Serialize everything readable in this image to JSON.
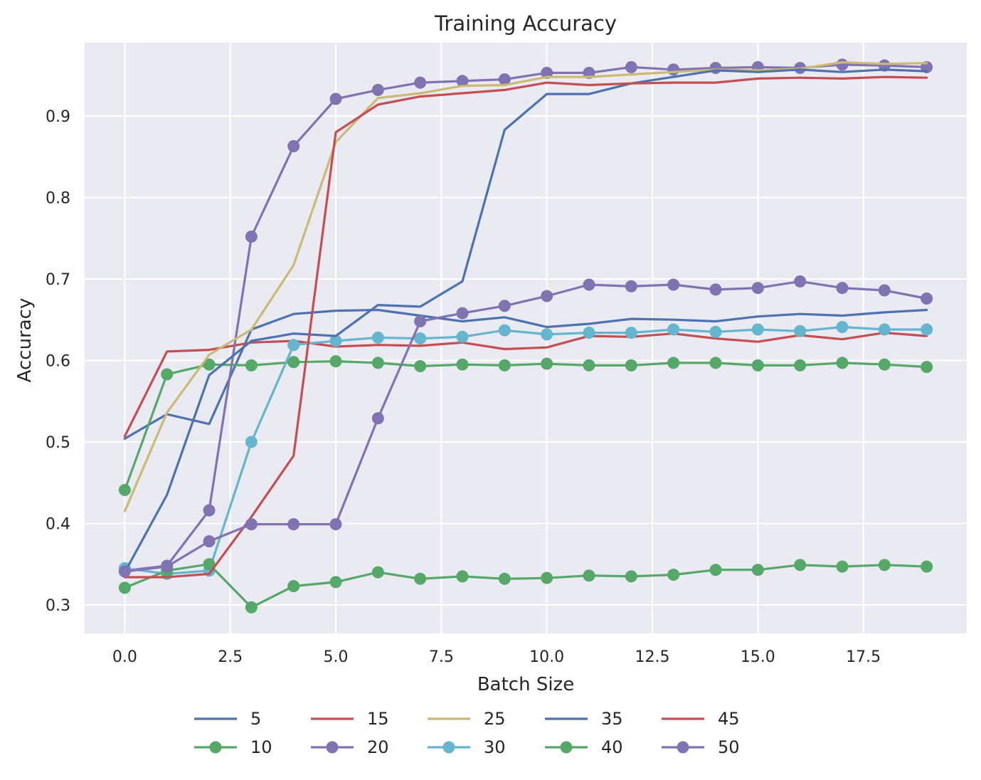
{
  "chart_data": {
    "type": "line",
    "title": "Training Accuracy",
    "xlabel": "Batch Size",
    "ylabel": "Accuracy",
    "xlim": [
      -0.95,
      19.95
    ],
    "ylim": [
      0.265,
      0.99
    ],
    "xticks": [
      0.0,
      2.5,
      5.0,
      7.5,
      10.0,
      12.5,
      15.0,
      17.5
    ],
    "xtick_labels": [
      "0.0",
      "2.5",
      "5.0",
      "7.5",
      "10.0",
      "12.5",
      "15.0",
      "17.5"
    ],
    "yticks": [
      0.3,
      0.4,
      0.5,
      0.6,
      0.7,
      0.8,
      0.9
    ],
    "ytick_labels": [
      "0.3",
      "0.4",
      "0.5",
      "0.6",
      "0.7",
      "0.8",
      "0.9"
    ],
    "grid": true,
    "legend_position": "bottom-center",
    "legend_columns": 6,
    "x": [
      0,
      1,
      2,
      3,
      4,
      5,
      6,
      7,
      8,
      9,
      10,
      11,
      12,
      13,
      14,
      15,
      16,
      17,
      18,
      19
    ],
    "series": [
      {
        "name": "5",
        "color": "#4C72B0",
        "marker": false,
        "values": [
          0.504,
          0.534,
          0.522,
          0.638,
          0.657,
          0.661,
          0.662,
          0.655,
          0.648,
          0.653,
          0.641,
          0.645,
          0.651,
          0.65,
          0.648,
          0.654,
          0.657,
          0.655,
          0.659,
          0.662
        ]
      },
      {
        "name": "10",
        "color": "#55A868",
        "marker": true,
        "values": [
          0.441,
          0.583,
          0.595,
          0.594,
          0.598,
          0.599,
          0.597,
          0.593,
          0.595,
          0.594,
          0.596,
          0.594,
          0.594,
          0.597,
          0.597,
          0.594,
          0.594,
          0.597,
          0.595,
          0.592
        ]
      },
      {
        "name": "15",
        "color": "#C44E52",
        "marker": false,
        "values": [
          0.507,
          0.611,
          0.613,
          0.622,
          0.624,
          0.617,
          0.619,
          0.618,
          0.622,
          0.614,
          0.616,
          0.63,
          0.629,
          0.633,
          0.627,
          0.623,
          0.631,
          0.626,
          0.634,
          0.63
        ]
      },
      {
        "name": "20",
        "color": "#8172B2",
        "marker": true,
        "values": [
          0.342,
          0.348,
          0.416,
          0.752,
          0.863,
          0.921,
          0.932,
          0.941,
          0.943,
          0.945,
          0.953,
          0.953,
          0.96,
          0.957,
          0.959,
          0.96,
          0.959,
          0.963,
          0.962,
          0.96
        ]
      },
      {
        "name": "25",
        "color": "#CCB974",
        "marker": false,
        "values": [
          0.415,
          0.536,
          0.607,
          0.638,
          0.717,
          0.868,
          0.922,
          0.928,
          0.937,
          0.938,
          0.948,
          0.948,
          0.951,
          0.954,
          0.957,
          0.956,
          0.958,
          0.966,
          0.964,
          0.965
        ]
      },
      {
        "name": "30",
        "color": "#64B5CD",
        "marker": true,
        "values": [
          0.345,
          0.338,
          0.342,
          0.5,
          0.619,
          0.624,
          0.628,
          0.627,
          0.629,
          0.637,
          0.632,
          0.634,
          0.634,
          0.638,
          0.635,
          0.638,
          0.636,
          0.641,
          0.638,
          0.638
        ]
      },
      {
        "name": "35",
        "color": "#4C72B0",
        "marker": false,
        "values": [
          0.34,
          0.435,
          0.582,
          0.624,
          0.633,
          0.63,
          0.668,
          0.666,
          0.697,
          0.883,
          0.927,
          0.927,
          0.94,
          0.948,
          0.956,
          0.954,
          0.957,
          0.954,
          0.957,
          0.955
        ]
      },
      {
        "name": "40",
        "color": "#55A868",
        "marker": true,
        "values": [
          0.321,
          0.342,
          0.35,
          0.297,
          0.323,
          0.328,
          0.34,
          0.332,
          0.335,
          0.332,
          0.333,
          0.336,
          0.335,
          0.337,
          0.343,
          0.343,
          0.349,
          0.347,
          0.349,
          0.347
        ]
      },
      {
        "name": "45",
        "color": "#C44E52",
        "marker": false,
        "values": [
          0.334,
          0.334,
          0.338,
          0.408,
          0.483,
          0.88,
          0.914,
          0.924,
          0.928,
          0.932,
          0.941,
          0.938,
          0.94,
          0.941,
          0.941,
          0.946,
          0.947,
          0.946,
          0.948,
          0.947
        ]
      },
      {
        "name": "50",
        "color": "#8172B2",
        "marker": true,
        "values": [
          0.341,
          0.347,
          0.378,
          0.399,
          0.399,
          0.399,
          0.529,
          0.648,
          0.658,
          0.667,
          0.679,
          0.693,
          0.691,
          0.693,
          0.687,
          0.689,
          0.697,
          0.689,
          0.686,
          0.676
        ]
      }
    ],
    "colors": {
      "plot_background": "#EAEAF2",
      "grid": "#FFFFFF",
      "text": "#262626"
    }
  }
}
